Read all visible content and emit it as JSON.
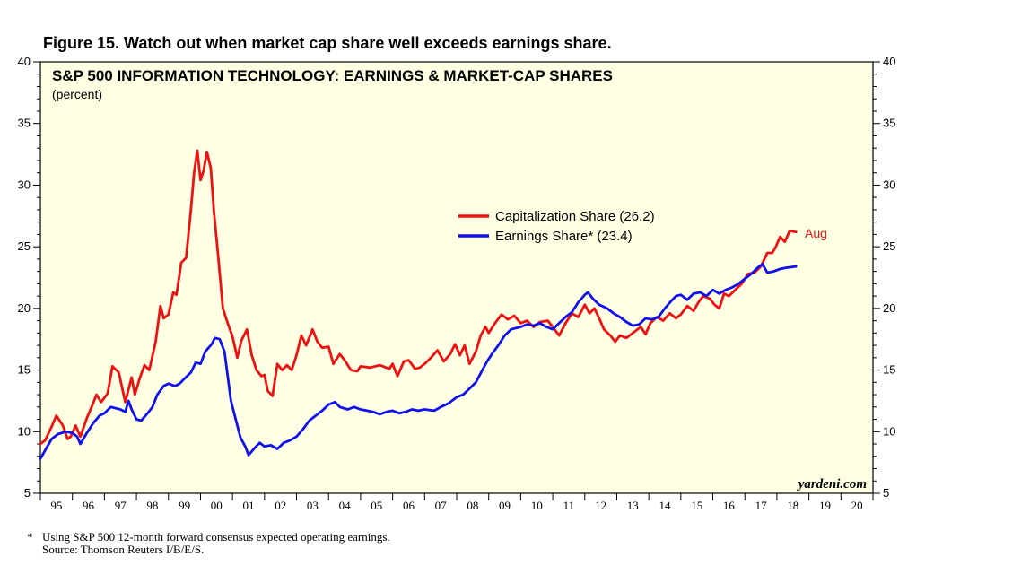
{
  "figure": {
    "title": "Figure 15. Watch out when market cap share well exceeds earnings share."
  },
  "footnote": {
    "marker": "*",
    "line1": "Using S&P 500 12-month forward consensus expected operating earnings.",
    "line2": "Source: Thomson Reuters I/B/E/S."
  },
  "chart_data": {
    "type": "line",
    "title": "S&P 500 INFORMATION TECHNOLOGY: EARNINGS & MARKET-CAP SHARES",
    "subtitle": "(percent)",
    "watermark": "yardeni.com",
    "end_label": "Aug",
    "background": "#ffffe3",
    "ylim": [
      5,
      40
    ],
    "yticks": [
      5,
      10,
      15,
      20,
      25,
      30,
      35,
      40
    ],
    "xlim": [
      1995,
      2021
    ],
    "xlabels": [
      "95",
      "96",
      "97",
      "98",
      "99",
      "00",
      "01",
      "02",
      "03",
      "04",
      "05",
      "06",
      "07",
      "08",
      "09",
      "10",
      "11",
      "12",
      "13",
      "14",
      "15",
      "16",
      "17",
      "18",
      "19",
      "20"
    ],
    "legend_position": "center-right",
    "series": [
      {
        "name": "Capitalization Share (26.2)",
        "color": "#ee1111",
        "points": [
          [
            1995.0,
            9.0
          ],
          [
            1995.15,
            9.3
          ],
          [
            1995.35,
            10.4
          ],
          [
            1995.5,
            11.3
          ],
          [
            1995.7,
            10.5
          ],
          [
            1995.85,
            9.4
          ],
          [
            1995.95,
            9.6
          ],
          [
            1996.1,
            10.5
          ],
          [
            1996.25,
            9.6
          ],
          [
            1996.45,
            11.1
          ],
          [
            1996.6,
            12.0
          ],
          [
            1996.75,
            13.0
          ],
          [
            1996.9,
            12.4
          ],
          [
            1997.1,
            13.1
          ],
          [
            1997.25,
            15.3
          ],
          [
            1997.45,
            14.8
          ],
          [
            1997.65,
            12.4
          ],
          [
            1997.85,
            14.4
          ],
          [
            1997.95,
            13.0
          ],
          [
            1998.1,
            14.3
          ],
          [
            1998.25,
            15.4
          ],
          [
            1998.4,
            15.0
          ],
          [
            1998.6,
            17.3
          ],
          [
            1998.75,
            20.2
          ],
          [
            1998.85,
            19.2
          ],
          [
            1999.0,
            19.5
          ],
          [
            1999.15,
            21.3
          ],
          [
            1999.25,
            21.1
          ],
          [
            1999.4,
            23.7
          ],
          [
            1999.55,
            24.1
          ],
          [
            1999.7,
            28.0
          ],
          [
            1999.8,
            31.0
          ],
          [
            1999.9,
            32.8
          ],
          [
            2000.0,
            30.4
          ],
          [
            2000.1,
            31.2
          ],
          [
            2000.2,
            32.7
          ],
          [
            2000.32,
            31.4
          ],
          [
            2000.42,
            27.8
          ],
          [
            2000.55,
            24.3
          ],
          [
            2000.7,
            20.0
          ],
          [
            2000.85,
            18.8
          ],
          [
            2001.0,
            17.7
          ],
          [
            2001.15,
            16.0
          ],
          [
            2001.28,
            17.4
          ],
          [
            2001.45,
            18.3
          ],
          [
            2001.6,
            16.2
          ],
          [
            2001.75,
            15.0
          ],
          [
            2001.9,
            14.5
          ],
          [
            2002.0,
            14.6
          ],
          [
            2002.1,
            13.3
          ],
          [
            2002.25,
            12.9
          ],
          [
            2002.4,
            15.5
          ],
          [
            2002.55,
            15.0
          ],
          [
            2002.7,
            15.4
          ],
          [
            2002.85,
            15.0
          ],
          [
            2003.0,
            16.2
          ],
          [
            2003.15,
            17.8
          ],
          [
            2003.3,
            17.0
          ],
          [
            2003.5,
            18.3
          ],
          [
            2003.65,
            17.3
          ],
          [
            2003.8,
            16.8
          ],
          [
            2004.0,
            16.9
          ],
          [
            2004.15,
            15.5
          ],
          [
            2004.35,
            16.3
          ],
          [
            2004.5,
            15.8
          ],
          [
            2004.7,
            15.0
          ],
          [
            2004.9,
            14.9
          ],
          [
            2005.0,
            15.3
          ],
          [
            2005.3,
            15.2
          ],
          [
            2005.6,
            15.4
          ],
          [
            2005.9,
            15.1
          ],
          [
            2006.0,
            15.5
          ],
          [
            2006.15,
            14.5
          ],
          [
            2006.35,
            15.7
          ],
          [
            2006.5,
            15.8
          ],
          [
            2006.7,
            15.1
          ],
          [
            2006.85,
            15.2
          ],
          [
            2007.0,
            15.5
          ],
          [
            2007.2,
            16.0
          ],
          [
            2007.4,
            16.6
          ],
          [
            2007.6,
            15.7
          ],
          [
            2007.8,
            16.3
          ],
          [
            2007.95,
            17.1
          ],
          [
            2008.1,
            16.2
          ],
          [
            2008.25,
            17.0
          ],
          [
            2008.4,
            15.5
          ],
          [
            2008.6,
            16.5
          ],
          [
            2008.75,
            17.8
          ],
          [
            2008.9,
            18.5
          ],
          [
            2009.0,
            18.0
          ],
          [
            2009.2,
            18.8
          ],
          [
            2009.4,
            19.5
          ],
          [
            2009.6,
            19.1
          ],
          [
            2009.8,
            19.4
          ],
          [
            2010.0,
            18.8
          ],
          [
            2010.2,
            19.0
          ],
          [
            2010.4,
            18.5
          ],
          [
            2010.6,
            18.9
          ],
          [
            2010.85,
            19.0
          ],
          [
            2011.0,
            18.5
          ],
          [
            2011.2,
            17.8
          ],
          [
            2011.4,
            18.8
          ],
          [
            2011.6,
            19.6
          ],
          [
            2011.8,
            19.3
          ],
          [
            2012.0,
            20.3
          ],
          [
            2012.15,
            19.6
          ],
          [
            2012.3,
            20.0
          ],
          [
            2012.45,
            19.2
          ],
          [
            2012.6,
            18.3
          ],
          [
            2012.8,
            17.8
          ],
          [
            2012.95,
            17.3
          ],
          [
            2013.1,
            17.8
          ],
          [
            2013.3,
            17.6
          ],
          [
            2013.5,
            18.0
          ],
          [
            2013.75,
            18.5
          ],
          [
            2013.9,
            17.9
          ],
          [
            2014.05,
            18.8
          ],
          [
            2014.25,
            19.3
          ],
          [
            2014.45,
            19.0
          ],
          [
            2014.65,
            19.6
          ],
          [
            2014.85,
            19.2
          ],
          [
            2015.0,
            19.5
          ],
          [
            2015.2,
            20.2
          ],
          [
            2015.4,
            19.8
          ],
          [
            2015.55,
            20.5
          ],
          [
            2015.7,
            21.0
          ],
          [
            2015.9,
            20.8
          ],
          [
            2016.05,
            20.3
          ],
          [
            2016.2,
            20.0
          ],
          [
            2016.35,
            21.2
          ],
          [
            2016.5,
            21.0
          ],
          [
            2016.7,
            21.5
          ],
          [
            2016.9,
            22.0
          ],
          [
            2017.1,
            22.8
          ],
          [
            2017.3,
            22.9
          ],
          [
            2017.5,
            23.4
          ],
          [
            2017.7,
            24.5
          ],
          [
            2017.85,
            24.5
          ],
          [
            2017.95,
            24.9
          ],
          [
            2018.1,
            25.8
          ],
          [
            2018.25,
            25.4
          ],
          [
            2018.4,
            26.3
          ],
          [
            2018.6,
            26.2
          ]
        ]
      },
      {
        "name": "Earnings Share* (23.4)",
        "color": "#1111ee",
        "points": [
          [
            1995.0,
            7.8
          ],
          [
            1995.15,
            8.5
          ],
          [
            1995.35,
            9.4
          ],
          [
            1995.55,
            9.8
          ],
          [
            1995.8,
            10.0
          ],
          [
            1996.0,
            9.9
          ],
          [
            1996.15,
            9.6
          ],
          [
            1996.25,
            9.0
          ],
          [
            1996.45,
            9.9
          ],
          [
            1996.65,
            10.7
          ],
          [
            1996.85,
            11.3
          ],
          [
            1997.0,
            11.5
          ],
          [
            1997.2,
            12.0
          ],
          [
            1997.5,
            11.8
          ],
          [
            1997.65,
            11.6
          ],
          [
            1997.75,
            12.5
          ],
          [
            1997.85,
            11.8
          ],
          [
            1998.0,
            11.0
          ],
          [
            1998.15,
            10.9
          ],
          [
            1998.35,
            11.5
          ],
          [
            1998.5,
            12.0
          ],
          [
            1998.65,
            13.0
          ],
          [
            1998.85,
            13.7
          ],
          [
            1999.0,
            13.9
          ],
          [
            1999.2,
            13.7
          ],
          [
            1999.35,
            13.9
          ],
          [
            1999.5,
            14.3
          ],
          [
            1999.7,
            14.8
          ],
          [
            1999.85,
            15.6
          ],
          [
            2000.0,
            15.5
          ],
          [
            2000.15,
            16.5
          ],
          [
            2000.35,
            17.1
          ],
          [
            2000.45,
            17.6
          ],
          [
            2000.6,
            17.5
          ],
          [
            2000.75,
            16.5
          ],
          [
            2000.85,
            14.5
          ],
          [
            2000.95,
            12.5
          ],
          [
            2001.1,
            11.0
          ],
          [
            2001.25,
            9.5
          ],
          [
            2001.4,
            8.8
          ],
          [
            2001.5,
            8.1
          ],
          [
            2001.7,
            8.7
          ],
          [
            2001.85,
            9.1
          ],
          [
            2002.0,
            8.8
          ],
          [
            2002.2,
            8.9
          ],
          [
            2002.4,
            8.6
          ],
          [
            2002.6,
            9.1
          ],
          [
            2002.8,
            9.3
          ],
          [
            2003.0,
            9.6
          ],
          [
            2003.2,
            10.2
          ],
          [
            2003.4,
            10.9
          ],
          [
            2003.6,
            11.3
          ],
          [
            2003.8,
            11.7
          ],
          [
            2004.0,
            12.2
          ],
          [
            2004.2,
            12.4
          ],
          [
            2004.35,
            12.0
          ],
          [
            2004.6,
            11.8
          ],
          [
            2004.8,
            12.0
          ],
          [
            2005.0,
            11.8
          ],
          [
            2005.2,
            11.7
          ],
          [
            2005.4,
            11.6
          ],
          [
            2005.6,
            11.4
          ],
          [
            2005.8,
            11.6
          ],
          [
            2006.0,
            11.7
          ],
          [
            2006.2,
            11.5
          ],
          [
            2006.4,
            11.6
          ],
          [
            2006.6,
            11.8
          ],
          [
            2006.8,
            11.7
          ],
          [
            2007.0,
            11.8
          ],
          [
            2007.3,
            11.7
          ],
          [
            2007.5,
            12.0
          ],
          [
            2007.75,
            12.3
          ],
          [
            2008.0,
            12.8
          ],
          [
            2008.2,
            13.0
          ],
          [
            2008.4,
            13.5
          ],
          [
            2008.6,
            14.0
          ],
          [
            2008.8,
            15.0
          ],
          [
            2008.95,
            15.7
          ],
          [
            2009.1,
            16.3
          ],
          [
            2009.3,
            17.0
          ],
          [
            2009.5,
            17.8
          ],
          [
            2009.7,
            18.3
          ],
          [
            2010.0,
            18.5
          ],
          [
            2010.2,
            18.7
          ],
          [
            2010.4,
            18.6
          ],
          [
            2010.6,
            18.8
          ],
          [
            2010.8,
            18.5
          ],
          [
            2011.0,
            18.3
          ],
          [
            2011.2,
            18.8
          ],
          [
            2011.4,
            19.3
          ],
          [
            2011.6,
            19.7
          ],
          [
            2011.8,
            20.5
          ],
          [
            2012.0,
            21.1
          ],
          [
            2012.1,
            21.3
          ],
          [
            2012.25,
            20.8
          ],
          [
            2012.45,
            20.3
          ],
          [
            2012.7,
            20.0
          ],
          [
            2012.9,
            19.6
          ],
          [
            2013.1,
            19.3
          ],
          [
            2013.3,
            18.9
          ],
          [
            2013.5,
            18.6
          ],
          [
            2013.7,
            18.7
          ],
          [
            2013.9,
            19.2
          ],
          [
            2014.1,
            19.1
          ],
          [
            2014.3,
            19.3
          ],
          [
            2014.5,
            20.0
          ],
          [
            2014.7,
            20.6
          ],
          [
            2014.85,
            21.0
          ],
          [
            2015.0,
            21.1
          ],
          [
            2015.2,
            20.7
          ],
          [
            2015.4,
            21.2
          ],
          [
            2015.6,
            21.3
          ],
          [
            2015.8,
            21.0
          ],
          [
            2016.0,
            21.5
          ],
          [
            2016.2,
            21.2
          ],
          [
            2016.4,
            21.5
          ],
          [
            2016.6,
            21.7
          ],
          [
            2016.8,
            22.0
          ],
          [
            2017.0,
            22.4
          ],
          [
            2017.2,
            22.8
          ],
          [
            2017.4,
            23.3
          ],
          [
            2017.55,
            23.6
          ],
          [
            2017.7,
            22.9
          ],
          [
            2017.9,
            23.0
          ],
          [
            2018.1,
            23.2
          ],
          [
            2018.3,
            23.3
          ],
          [
            2018.6,
            23.4
          ]
        ]
      }
    ]
  }
}
